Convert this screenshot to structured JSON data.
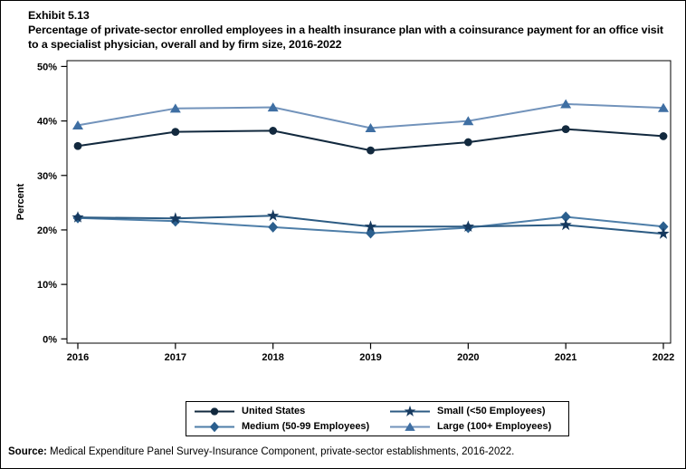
{
  "header": {
    "exhibit": "Exhibit 5.13",
    "title": "Percentage of private-sector enrolled employees in a health insurance plan with a coinsurance payment for an office visit to a specialist physician, overall and by firm size, 2016-2022"
  },
  "chart_data": {
    "type": "line",
    "title": "Percentage of private-sector enrolled employees in a health insurance plan with a coinsurance payment for an office visit to a specialist physician, overall and by firm size, 2016-2022",
    "xlabel": "",
    "ylabel": "Percent",
    "x": [
      2016,
      2017,
      2018,
      2019,
      2020,
      2021,
      2022
    ],
    "ylim": [
      0,
      50
    ],
    "ytick_interval": 10,
    "yticks": [
      "0%",
      "10%",
      "20%",
      "30%",
      "40%",
      "50%"
    ],
    "grid": false,
    "legend_position": "bottom",
    "series": [
      {
        "name": "United States",
        "marker": "circle",
        "marker_color": "#12293E",
        "line_color": "#12293E",
        "values": [
          35.4,
          38.0,
          38.2,
          34.6,
          36.1,
          38.5,
          37.2
        ]
      },
      {
        "name": "Medium (50-99 Employees)",
        "marker": "diamond",
        "marker_color": "#2B5F8E",
        "line_color": "#4E7EA8",
        "values": [
          22.2,
          21.6,
          20.5,
          19.4,
          20.4,
          22.4,
          20.6
        ]
      },
      {
        "name": "Small (<50 Employees)",
        "marker": "star",
        "marker_color": "#16395E",
        "line_color": "#2C5B83",
        "values": [
          22.3,
          22.1,
          22.6,
          20.6,
          20.6,
          20.9,
          19.3
        ]
      },
      {
        "name": "Large (100+ Employees)",
        "marker": "triangle",
        "marker_color": "#3F6FA3",
        "line_color": "#7293BB",
        "values": [
          39.2,
          42.3,
          42.5,
          38.7,
          40.0,
          43.1,
          42.4
        ]
      }
    ]
  },
  "legend": {
    "items": [
      {
        "label": "United States",
        "series_index": 0
      },
      {
        "label": "Small (<50 Employees)",
        "series_index": 2
      },
      {
        "label": "Medium (50-99 Employees)",
        "series_index": 1
      },
      {
        "label": "Large (100+ Employees)",
        "series_index": 3
      }
    ]
  },
  "source": {
    "label": "Source:",
    "text": " Medical Expenditure Panel Survey-Insurance Component, private-sector establishments, 2016-2022."
  }
}
